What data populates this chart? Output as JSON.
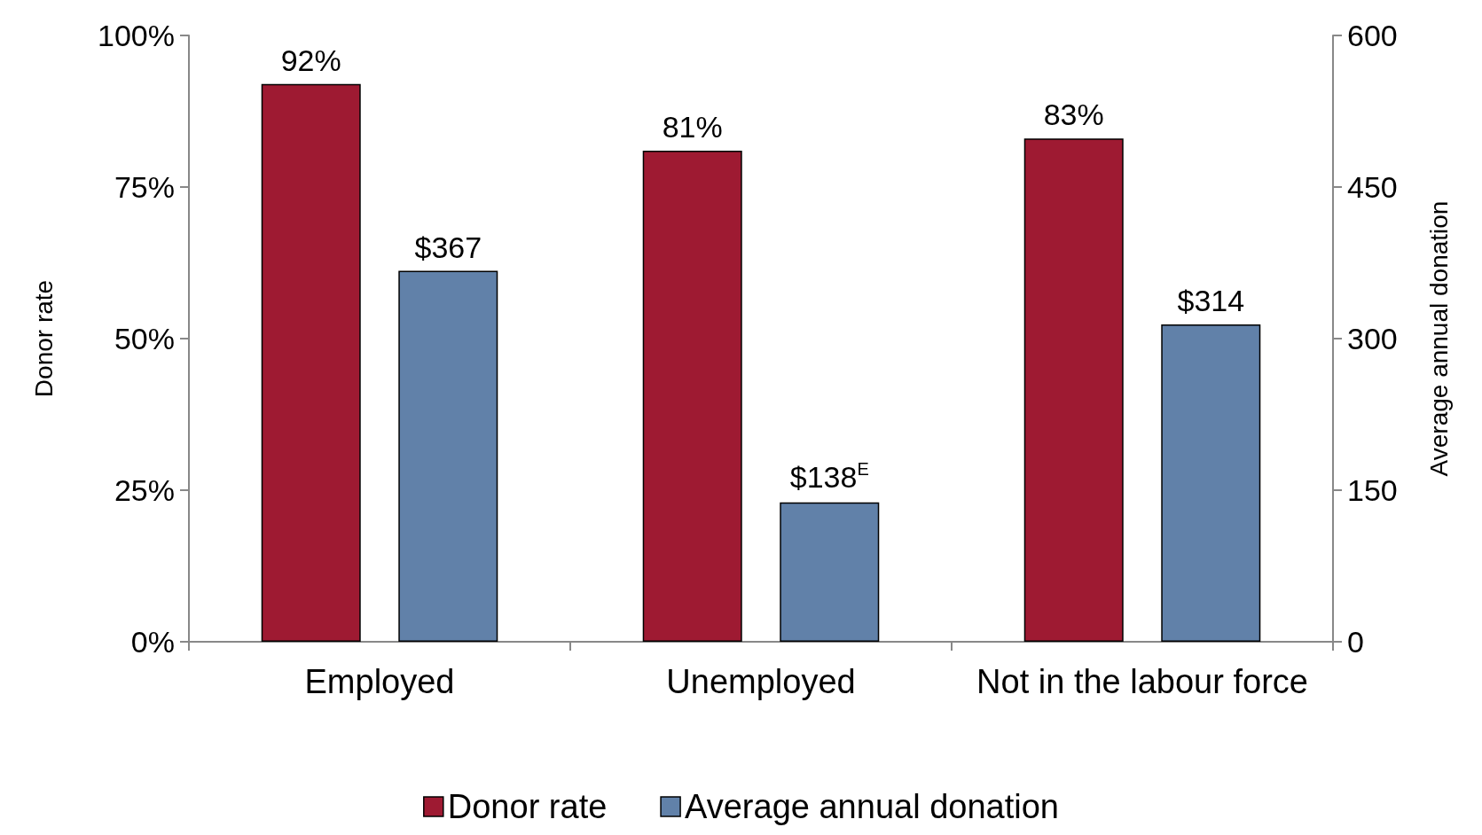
{
  "chart_data": {
    "type": "bar",
    "categories": [
      "Employed",
      "Unemployed",
      "Not in the labour force"
    ],
    "series": [
      {
        "name": "Donor rate",
        "color": "#9e1a32",
        "values": [
          92,
          81,
          83
        ],
        "value_labels": [
          "92%",
          "81%",
          "83%"
        ]
      },
      {
        "name": "Average annual donation",
        "color": "#6181a9",
        "values": [
          367,
          138,
          314
        ],
        "axis": "y2",
        "value_labels": [
          "$367",
          "$138$^{E}$",
          "$314"
        ]
      }
    ],
    "ylabel": "Donor rate",
    "y2label": "Average annual donation",
    "ylim": [
      0,
      100
    ],
    "yticks": [
      {
        "value": 0,
        "label": "0%"
      },
      {
        "value": 25,
        "label": "25%"
      },
      {
        "value": 50,
        "label": "50%"
      },
      {
        "value": 75,
        "label": "75%"
      },
      {
        "value": 100,
        "label": "100%"
      }
    ],
    "y2lim": [
      0,
      600
    ],
    "y2ticks": [
      0,
      150,
      300,
      450,
      600
    ],
    "legend": "bottom"
  }
}
